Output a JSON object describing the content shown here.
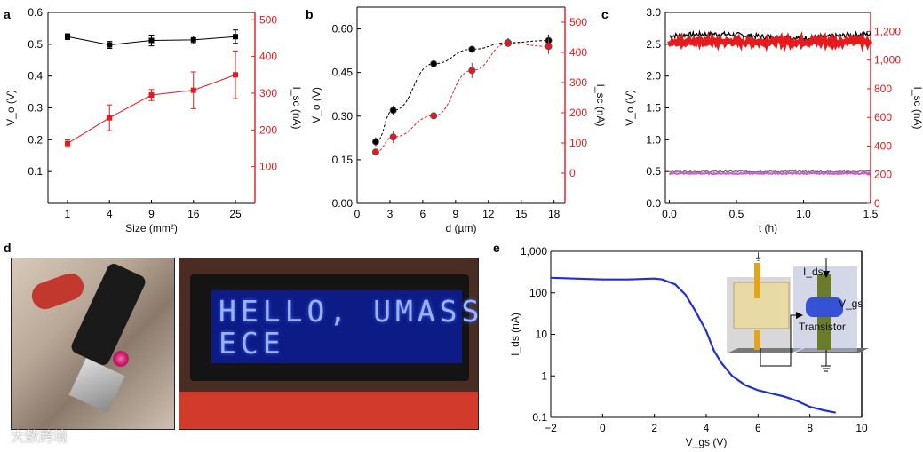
{
  "panels": [
    "a",
    "b",
    "c",
    "d",
    "e"
  ],
  "colors": {
    "black": "#000000",
    "red": "#e41a1c",
    "gray": "#6b6b6b",
    "magenta": "#d25ad2",
    "blue": "#1f2fd6"
  },
  "chart_data": [
    {
      "panel": "a",
      "type": "line",
      "categories": [
        "1",
        "4",
        "9",
        "16",
        "25"
      ],
      "xlabel": "Size (mm²)",
      "ylabel": "V_o (V)",
      "y2label": "I_sc (nA)",
      "ylim": [
        0,
        0.6
      ],
      "y2lim": [
        0,
        520
      ],
      "yticks": [
        "0.1",
        "0.2",
        "0.3",
        "0.4",
        "0.5",
        "0.6"
      ],
      "y2ticks": [
        "100",
        "200",
        "300",
        "400",
        "500"
      ],
      "series": [
        {
          "name": "V_o",
          "axis": "left",
          "color": "#000000",
          "values": [
            0.524,
            0.498,
            0.512,
            0.514,
            0.524
          ],
          "err": [
            0.009,
            0.011,
            0.017,
            0.012,
            0.021
          ]
        },
        {
          "name": "I_sc",
          "axis": "right",
          "color": "#e41a1c",
          "values": [
            163,
            233,
            295,
            308,
            350
          ],
          "err": [
            10,
            35,
            15,
            50,
            65
          ]
        }
      ]
    },
    {
      "panel": "b",
      "type": "scatter",
      "xlabel": "d (µm)",
      "ylabel": "V_o (V)",
      "y2label": "I_sc (nA)",
      "xlim": [
        0,
        19
      ],
      "ylim": [
        0,
        0.675
      ],
      "y2lim": [
        -100,
        550
      ],
      "xticks": [
        "0",
        "3",
        "6",
        "9",
        "12",
        "15",
        "18"
      ],
      "yticks": [
        "0.00",
        "0.15",
        "0.30",
        "0.45",
        "0.60"
      ],
      "y2ticks": [
        "0",
        "100",
        "200",
        "300",
        "400",
        "500"
      ],
      "series": [
        {
          "name": "V_o",
          "axis": "left",
          "color": "#000000",
          "x": [
            1.7,
            3.3,
            7.0,
            10.5,
            13.8,
            17.5
          ],
          "y": [
            0.212,
            0.32,
            0.48,
            0.53,
            0.553,
            0.56
          ],
          "err": [
            0.015,
            0.015,
            0.012,
            0.006,
            0.015,
            0.02
          ]
        },
        {
          "name": "I_sc",
          "axis": "right",
          "color": "#e41a1c",
          "x": [
            1.7,
            3.3,
            7.0,
            10.5,
            13.8,
            17.5
          ],
          "y": [
            70,
            120,
            190,
            340,
            430,
            420
          ],
          "err": [
            5,
            20,
            10,
            25,
            10,
            25
          ]
        }
      ]
    },
    {
      "panel": "c",
      "type": "line",
      "xlabel": "t (h)",
      "ylabel": "V_o (V)",
      "y2label": "I_sc (nA)",
      "xlim": [
        -0.03,
        1.5
      ],
      "ylim": [
        0,
        3.0
      ],
      "y2lim": [
        0,
        1333
      ],
      "xticks": [
        "0.0",
        "0.5",
        "1.0",
        "1.5"
      ],
      "yticks": [
        "0.0",
        "0.5",
        "1.0",
        "1.5",
        "2.0",
        "2.5",
        "3.0"
      ],
      "y2ticks": [
        "0",
        "200",
        "400",
        "600",
        "800",
        "1,000",
        "1,200"
      ],
      "series": [
        {
          "axis": "left",
          "color": "#000000",
          "level": 2.63
        },
        {
          "axis": "right",
          "color": "#e41a1c",
          "level": 1130
        },
        {
          "axis": "left",
          "color": "#6b6b6b",
          "level": 0.5
        },
        {
          "axis": "left",
          "color": "#d25ad2",
          "level": 0.47
        }
      ]
    },
    {
      "panel": "e",
      "type": "line",
      "yscale": "log",
      "xlabel": "V_gs (V)",
      "ylabel": "I_ds (nA)",
      "xlim": [
        -2,
        10
      ],
      "ylim": [
        0.1,
        1000
      ],
      "xticks": [
        "−2",
        "0",
        "2",
        "4",
        "6",
        "8",
        "10"
      ],
      "yticks": [
        "0.1",
        "1",
        "10",
        "100",
        "1,000"
      ],
      "series": [
        {
          "color": "#1f2fd6",
          "x": [
            -2,
            0,
            1,
            2,
            2.3,
            2.8,
            3.2,
            3.6,
            4.0,
            4.3,
            4.6,
            5.0,
            5.5,
            6.0,
            6.5,
            7.0,
            7.5,
            8.0,
            8.5,
            9.0
          ],
          "y": [
            230,
            210,
            210,
            220,
            210,
            160,
            90,
            35,
            12,
            4,
            2,
            1,
            0.6,
            0.45,
            0.38,
            0.32,
            0.25,
            0.18,
            0.15,
            0.13
          ]
        }
      ]
    }
  ],
  "inset": {
    "ids": "I_ds",
    "vgs": "V_gs",
    "transistor": "Transistor"
  },
  "lcd": {
    "line1": "HELLO, UMASS!",
    "line2": "ECE"
  },
  "watermark": "大数跨境"
}
